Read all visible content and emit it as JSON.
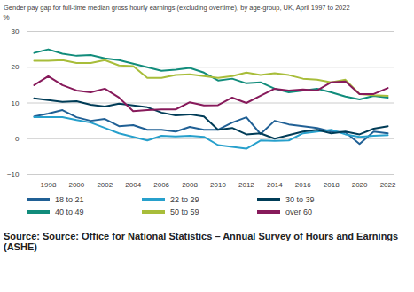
{
  "chart_data": {
    "type": "line",
    "title": "Gender pay gap for full-time median gross hourly earnings (excluding overtime), by age-group, UK, April 1997 to 2022",
    "y_label": "%",
    "caption": "Source: Source: Office for National Statistics – Annual Survey of Hours and Earnings (ASHE)",
    "x": [
      1997,
      1998,
      1999,
      2000,
      2001,
      2002,
      2003,
      2004,
      2005,
      2006,
      2007,
      2008,
      2009,
      2010,
      2011,
      2012,
      2013,
      2014,
      2015,
      2016,
      2017,
      2018,
      2019,
      2020,
      2021,
      2022
    ],
    "xlim": [
      1996.5,
      2022.5
    ],
    "xticks": [
      1998,
      2000,
      2002,
      2004,
      2006,
      2008,
      2010,
      2012,
      2014,
      2016,
      2018,
      2020,
      2022
    ],
    "ylim": [
      -10,
      30
    ],
    "yticks": [
      -10,
      0,
      10,
      20,
      30
    ],
    "grid": true,
    "legend": "bottom",
    "series": [
      {
        "name": "18 to 21",
        "color": "#206095",
        "values": [
          6.2,
          7,
          8,
          6,
          5,
          5.5,
          3.5,
          3.8,
          2.5,
          2.5,
          2,
          3.3,
          2.5,
          2.5,
          4.5,
          6,
          1.3,
          5,
          4,
          3.5,
          3,
          2,
          1.8,
          -1.5,
          2,
          1.5
        ]
      },
      {
        "name": "22 to 29",
        "color": "#27a0cc",
        "values": [
          6,
          6,
          6,
          5.2,
          4.5,
          3,
          1.5,
          0.5,
          -0.5,
          0.8,
          0.6,
          0.8,
          0.5,
          -1.8,
          -2.3,
          -2.8,
          -0.5,
          -0.6,
          -0.5,
          1.5,
          2,
          2.5,
          1.2,
          0.5,
          0.8,
          1
        ]
      },
      {
        "name": "30 to 39",
        "color": "#003c57",
        "values": [
          11.3,
          10.8,
          10.3,
          10.5,
          9.5,
          9,
          9.8,
          9.3,
          8.8,
          7.3,
          6.5,
          6.8,
          6.2,
          2.5,
          3,
          1.2,
          1.5,
          0,
          1,
          2,
          2.5,
          1.5,
          2,
          1.2,
          2.8,
          3.5
        ]
      },
      {
        "name": "40 to 49",
        "color": "#118c7b",
        "values": [
          24,
          25,
          23.8,
          23.2,
          23.4,
          22.5,
          22,
          21,
          20,
          19,
          19.3,
          19.8,
          18.5,
          16.3,
          16.8,
          15.5,
          15.8,
          14,
          13,
          13.5,
          14,
          13,
          11.8,
          11,
          12,
          11.5
        ]
      },
      {
        "name": "50 to 59",
        "color": "#a8bd3a",
        "values": [
          21.8,
          21.8,
          22,
          21.2,
          21.2,
          22,
          20.5,
          20.3,
          17,
          17,
          17.8,
          18,
          17.5,
          17,
          17.5,
          18.5,
          17.8,
          18.3,
          17.8,
          16.8,
          16.5,
          15.8,
          16.5,
          12.5,
          12.2,
          12
        ]
      },
      {
        "name": "over 60",
        "color": "#871a5b",
        "values": [
          15,
          17.5,
          15,
          13.5,
          13,
          14,
          11.5,
          7.7,
          8,
          8.2,
          8.2,
          10.2,
          9.3,
          9.4,
          11.5,
          10,
          12,
          14,
          13.5,
          13.8,
          13.5,
          15.8,
          16,
          12.5,
          12.5,
          14.2
        ]
      }
    ]
  }
}
